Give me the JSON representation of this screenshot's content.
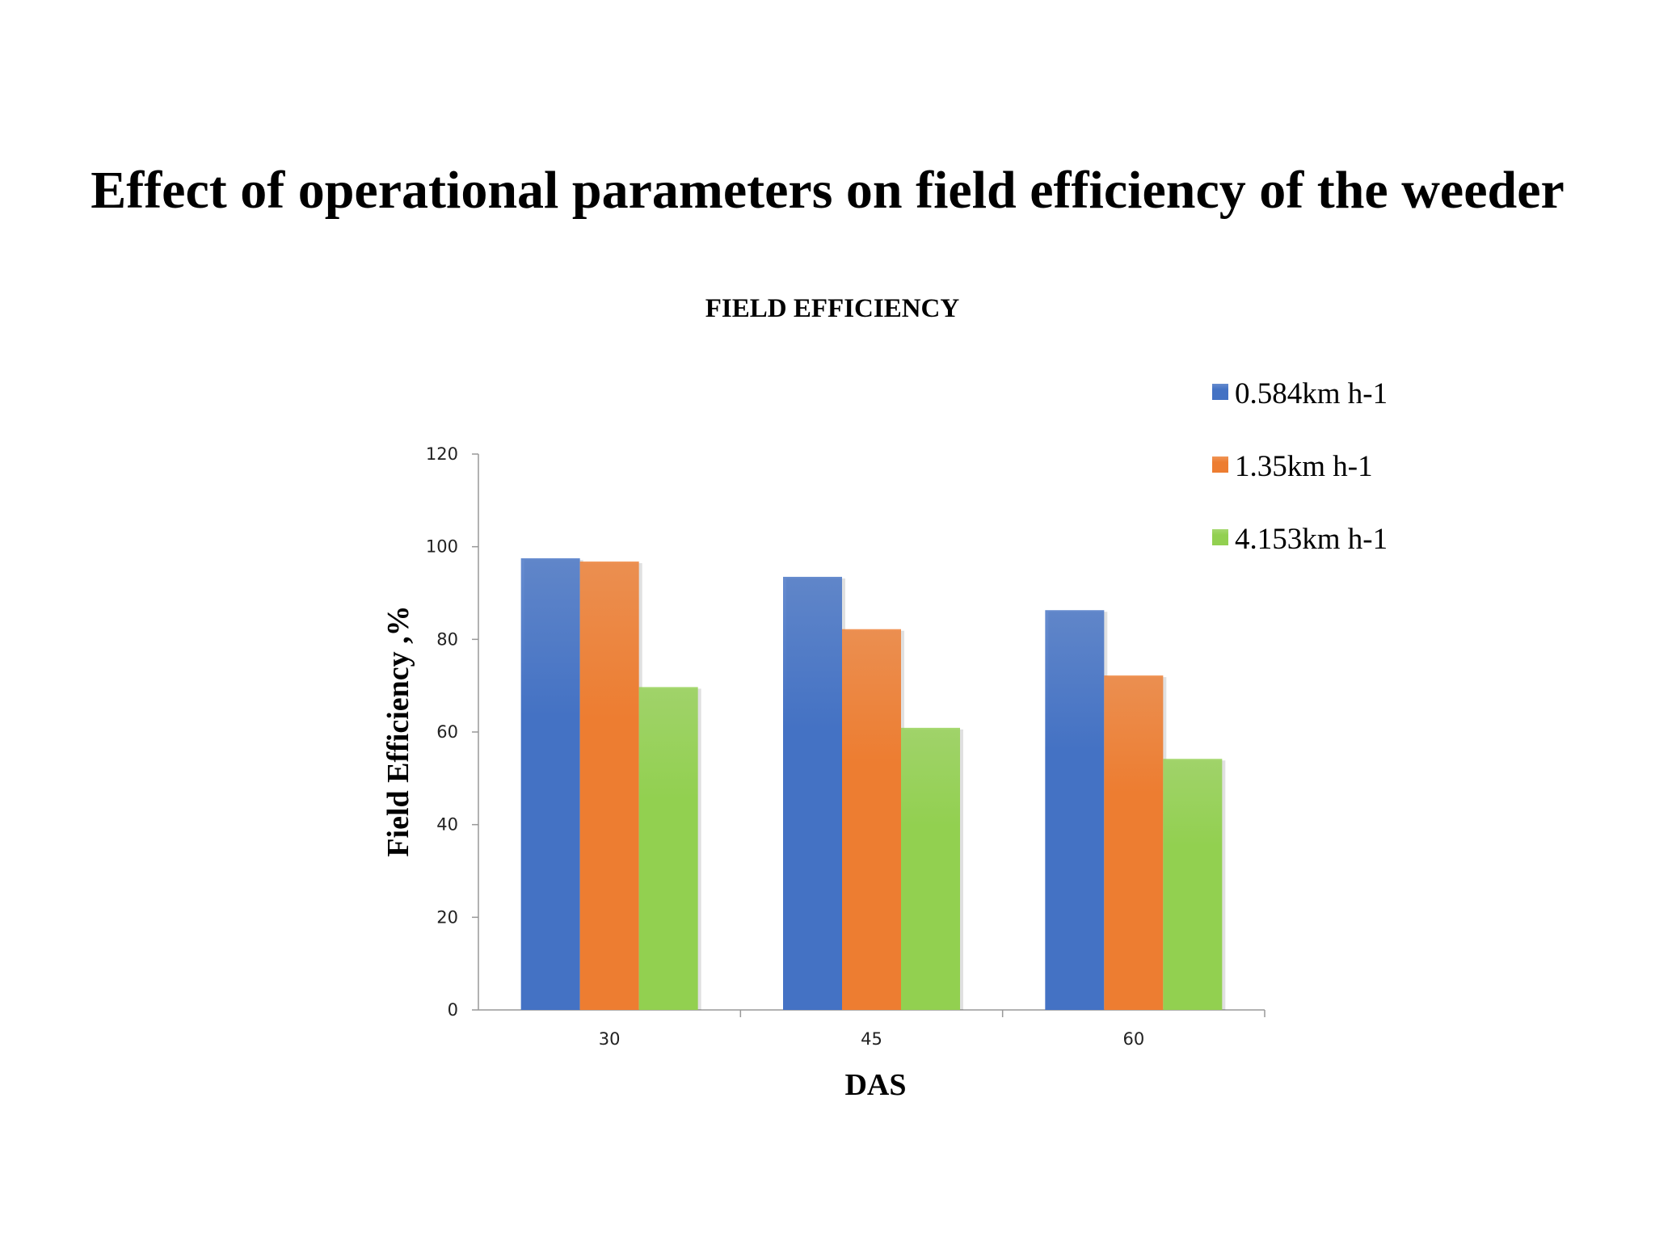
{
  "slide": {
    "title": "Effect of operational parameters on field efficiency of the weeder"
  },
  "chart_data": {
    "type": "bar",
    "title": "FIELD EFFICIENCY",
    "xlabel": "DAS",
    "ylabel": "Field Efficiency ,%",
    "categories": [
      "30",
      "45",
      "60"
    ],
    "series": [
      {
        "name": "0.584km h-1",
        "values": [
          97.5,
          93.5,
          86.3
        ],
        "color": "#4472C4"
      },
      {
        "name": "1.35km h-1",
        "values": [
          96.8,
          82.2,
          72.2
        ],
        "color": "#ED7D31"
      },
      {
        "name": "4.153km h-1",
        "values": [
          69.7,
          60.9,
          54.2
        ],
        "color": "#92D050"
      }
    ],
    "ylim": [
      0,
      120
    ],
    "yticks": [
      0,
      20,
      40,
      60,
      80,
      100,
      120
    ],
    "grid": false,
    "legend": "top-right"
  }
}
